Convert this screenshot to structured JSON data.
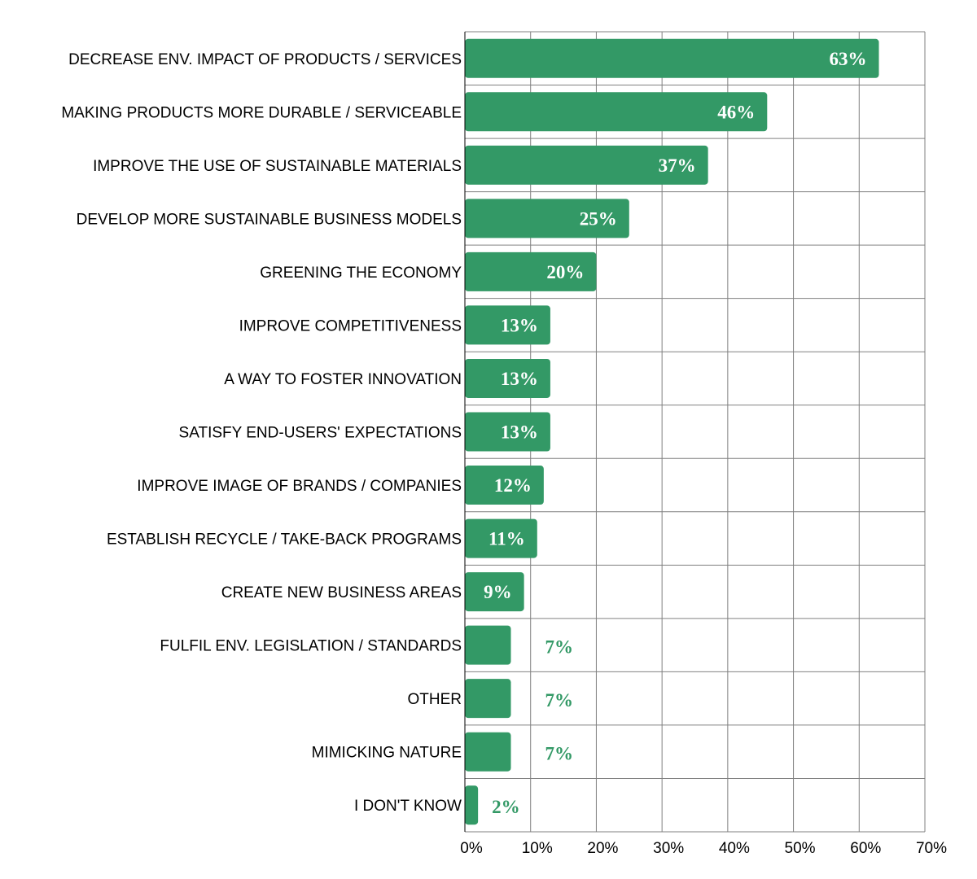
{
  "chart_data": {
    "type": "bar",
    "orientation": "horizontal",
    "categories": [
      "DECREASE ENV. IMPACT OF PRODUCTS / SERVICES",
      "MAKING PRODUCTS MORE DURABLE / SERVICEABLE",
      "IMPROVE THE USE OF SUSTAINABLE MATERIALS",
      "DEVELOP MORE SUSTAINABLE BUSINESS MODELS",
      "GREENING THE ECONOMY",
      "IMPROVE COMPETITIVENESS",
      "A WAY TO FOSTER INNOVATION",
      "SATISFY END-USERS' EXPECTATIONS",
      "IMPROVE IMAGE OF BRANDS / COMPANIES",
      "ESTABLISH RECYCLE / TAKE-BACK PROGRAMS",
      "CREATE NEW BUSINESS AREAS",
      "FULFIL ENV. LEGISLATION / STANDARDS",
      "OTHER",
      "MIMICKING NATURE",
      "I DON'T KNOW"
    ],
    "values": [
      63,
      46,
      37,
      25,
      20,
      13,
      13,
      13,
      12,
      11,
      9,
      7,
      7,
      7,
      2
    ],
    "data_labels": [
      "63%",
      "46%",
      "37%",
      "25%",
      "20%",
      "13%",
      "13%",
      "13%",
      "12%",
      "11%",
      "9%",
      "7%",
      "7%",
      "7%",
      "2%"
    ],
    "xlim": [
      0,
      70
    ],
    "xticks": [
      0,
      10,
      20,
      30,
      40,
      50,
      60,
      70
    ],
    "xtick_labels": [
      "0%",
      "10%",
      "20%",
      "30%",
      "40%",
      "50%",
      "60%",
      "70%"
    ],
    "title": "",
    "xlabel": "",
    "ylabel": "",
    "grid": true,
    "legend": "none",
    "colors": {
      "bar": "#339966",
      "grid": "#808080",
      "label_inside": "#ffffff",
      "label_outside": "#339966"
    }
  }
}
